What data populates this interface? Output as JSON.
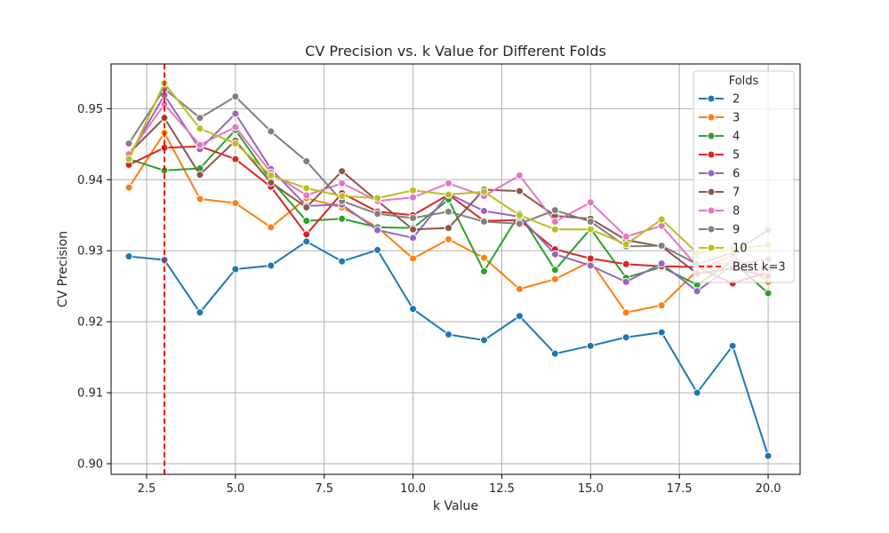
{
  "chart_data": {
    "type": "line",
    "title": "CV Precision vs. k Value for Different Folds",
    "xlabel": "k Value",
    "ylabel": "CV Precision",
    "xlim": [
      1.5,
      20.9
    ],
    "ylim": [
      0.8985,
      0.9563
    ],
    "xticks": [
      2.5,
      5.0,
      7.5,
      10.0,
      12.5,
      15.0,
      17.5,
      20.0
    ],
    "xtick_labels": [
      "2.5",
      "5.0",
      "7.5",
      "10.0",
      "12.5",
      "15.0",
      "17.5",
      "20.0"
    ],
    "yticks": [
      0.9,
      0.91,
      0.92,
      0.93,
      0.94,
      0.95
    ],
    "ytick_labels": [
      "0.90",
      "0.91",
      "0.92",
      "0.93",
      "0.94",
      "0.95"
    ],
    "grid": true,
    "legend_title": "Folds",
    "legend_position": "top-right",
    "x": [
      2,
      3,
      4,
      5,
      6,
      7,
      8,
      9,
      10,
      11,
      12,
      13,
      14,
      15,
      16,
      17,
      18,
      19,
      20
    ],
    "series": [
      {
        "name": "2",
        "color": "#1f77b4",
        "values": [
          0.9292,
          0.9287,
          0.9213,
          0.9274,
          0.9279,
          0.9313,
          0.9285,
          0.9301,
          0.9218,
          0.9182,
          0.9174,
          0.9208,
          0.9155,
          0.9166,
          0.9178,
          0.9185,
          0.91,
          0.9166,
          0.9011
        ]
      },
      {
        "name": "3",
        "color": "#ff7f0e",
        "values": [
          0.9389,
          0.9466,
          0.9373,
          0.9367,
          0.9333,
          0.9374,
          0.9361,
          0.9333,
          0.9289,
          0.9316,
          0.929,
          0.9246,
          0.926,
          0.9285,
          0.9213,
          0.9223,
          0.9272,
          0.9293,
          0.9256
        ]
      },
      {
        "name": "4",
        "color": "#2ca02c",
        "values": [
          0.9429,
          0.9413,
          0.9416,
          0.947,
          0.9399,
          0.9342,
          0.9345,
          0.9333,
          0.9332,
          0.9372,
          0.9271,
          0.9352,
          0.9273,
          0.9331,
          0.9262,
          0.9277,
          0.9252,
          0.9285,
          0.924
        ]
      },
      {
        "name": "5",
        "color": "#d62728",
        "values": [
          0.9421,
          0.9445,
          0.9447,
          0.9429,
          0.939,
          0.9323,
          0.9381,
          0.9355,
          0.935,
          0.9379,
          0.9342,
          0.9343,
          0.9302,
          0.9289,
          0.9281,
          0.9278,
          0.9277,
          0.9254,
          0.927
        ]
      },
      {
        "name": "6",
        "color": "#9467bd",
        "values": [
          0.9433,
          0.9519,
          0.9443,
          0.9493,
          0.9415,
          0.9363,
          0.9365,
          0.9329,
          0.9318,
          0.938,
          0.9356,
          0.9348,
          0.9295,
          0.9279,
          0.9256,
          0.9282,
          0.9243,
          0.928,
          0.9288
        ]
      },
      {
        "name": "7",
        "color": "#8c564b",
        "values": [
          0.9437,
          0.9487,
          0.9407,
          0.9455,
          0.9396,
          0.9361,
          0.9412,
          0.937,
          0.933,
          0.9332,
          0.9386,
          0.9384,
          0.9349,
          0.9345,
          0.9315,
          0.9306,
          0.9268,
          0.9275,
          0.9264
        ]
      },
      {
        "name": "8",
        "color": "#e377c2",
        "values": [
          0.9436,
          0.9506,
          0.9449,
          0.9474,
          0.941,
          0.9378,
          0.9395,
          0.937,
          0.9375,
          0.9395,
          0.9377,
          0.9406,
          0.9341,
          0.9368,
          0.932,
          0.9335,
          0.9278,
          0.9284,
          0.9274
        ]
      },
      {
        "name": "9",
        "color": "#7f7f7f",
        "values": [
          0.9451,
          0.9528,
          0.9487,
          0.9517,
          0.9468,
          0.9426,
          0.937,
          0.9352,
          0.9346,
          0.9355,
          0.9341,
          0.9338,
          0.9357,
          0.9341,
          0.9306,
          0.9307,
          0.9281,
          0.9297,
          0.9329
        ]
      },
      {
        "name": "10",
        "color": "#bcbd22",
        "values": [
          0.9429,
          0.9536,
          0.9472,
          0.9451,
          0.9406,
          0.9388,
          0.9377,
          0.9374,
          0.9385,
          0.9379,
          0.9383,
          0.935,
          0.933,
          0.933,
          0.9309,
          0.9344,
          0.9297,
          0.9302,
          0.9308
        ]
      }
    ],
    "reference_line": {
      "type": "vertical",
      "x": 3,
      "label": "Best k=3",
      "color": "#ff0000",
      "style": "dashed"
    }
  }
}
